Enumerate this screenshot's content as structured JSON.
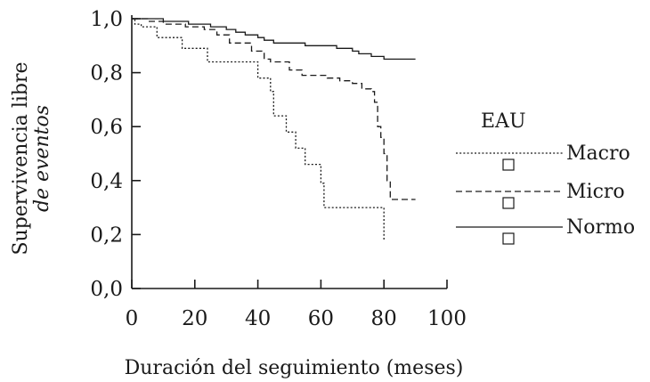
{
  "chart_data": {
    "type": "line",
    "step": true,
    "xlabel": "Duración del seguimiento (meses)",
    "ylabel_line1": "Supervivencia libre",
    "ylabel_line2": "de eventos",
    "xlim": [
      0,
      100
    ],
    "ylim": [
      0,
      1
    ],
    "x_ticks": [
      "0",
      "20",
      "40",
      "60",
      "80",
      "100"
    ],
    "y_ticks": [
      "0,0",
      "0,2",
      "0,4",
      "0,6",
      "0,8",
      "1,0"
    ],
    "legend_title": "EAU",
    "legend_position": "right",
    "series": [
      {
        "name": "Macro",
        "style": "dotted",
        "points": [
          [
            0,
            1.0
          ],
          [
            1,
            0.98
          ],
          [
            3,
            0.97
          ],
          [
            8,
            0.93
          ],
          [
            16,
            0.89
          ],
          [
            24,
            0.84
          ],
          [
            40,
            0.83
          ],
          [
            40,
            0.78
          ],
          [
            44,
            0.73
          ],
          [
            45,
            0.64
          ],
          [
            49,
            0.58
          ],
          [
            52,
            0.52
          ],
          [
            55,
            0.46
          ],
          [
            60,
            0.39
          ],
          [
            61,
            0.3
          ],
          [
            63,
            0.3
          ],
          [
            80,
            0.3
          ],
          [
            80,
            0.18
          ]
        ]
      },
      {
        "name": "Micro",
        "style": "dashed",
        "points": [
          [
            0,
            1.0
          ],
          [
            5,
            0.99
          ],
          [
            10,
            0.98
          ],
          [
            17,
            0.97
          ],
          [
            23,
            0.96
          ],
          [
            27,
            0.94
          ],
          [
            31,
            0.91
          ],
          [
            38,
            0.88
          ],
          [
            42,
            0.85
          ],
          [
            44,
            0.84
          ],
          [
            50,
            0.81
          ],
          [
            54,
            0.79
          ],
          [
            62,
            0.78
          ],
          [
            66,
            0.77
          ],
          [
            70,
            0.76
          ],
          [
            73,
            0.74
          ],
          [
            76,
            0.73
          ],
          [
            77,
            0.69
          ],
          [
            78,
            0.6
          ],
          [
            79,
            0.56
          ],
          [
            80,
            0.5
          ],
          [
            81,
            0.4
          ],
          [
            82,
            0.33
          ],
          [
            90,
            0.33
          ]
        ]
      },
      {
        "name": "Normo",
        "style": "solid",
        "points": [
          [
            0,
            1.0
          ],
          [
            10,
            0.99
          ],
          [
            18,
            0.98
          ],
          [
            25,
            0.97
          ],
          [
            30,
            0.96
          ],
          [
            33,
            0.95
          ],
          [
            36,
            0.94
          ],
          [
            40,
            0.93
          ],
          [
            42,
            0.92
          ],
          [
            45,
            0.91
          ],
          [
            50,
            0.91
          ],
          [
            55,
            0.9
          ],
          [
            60,
            0.9
          ],
          [
            65,
            0.89
          ],
          [
            70,
            0.88
          ],
          [
            72,
            0.87
          ],
          [
            76,
            0.86
          ],
          [
            80,
            0.86
          ],
          [
            80,
            0.85
          ],
          [
            90,
            0.85
          ]
        ]
      }
    ]
  }
}
